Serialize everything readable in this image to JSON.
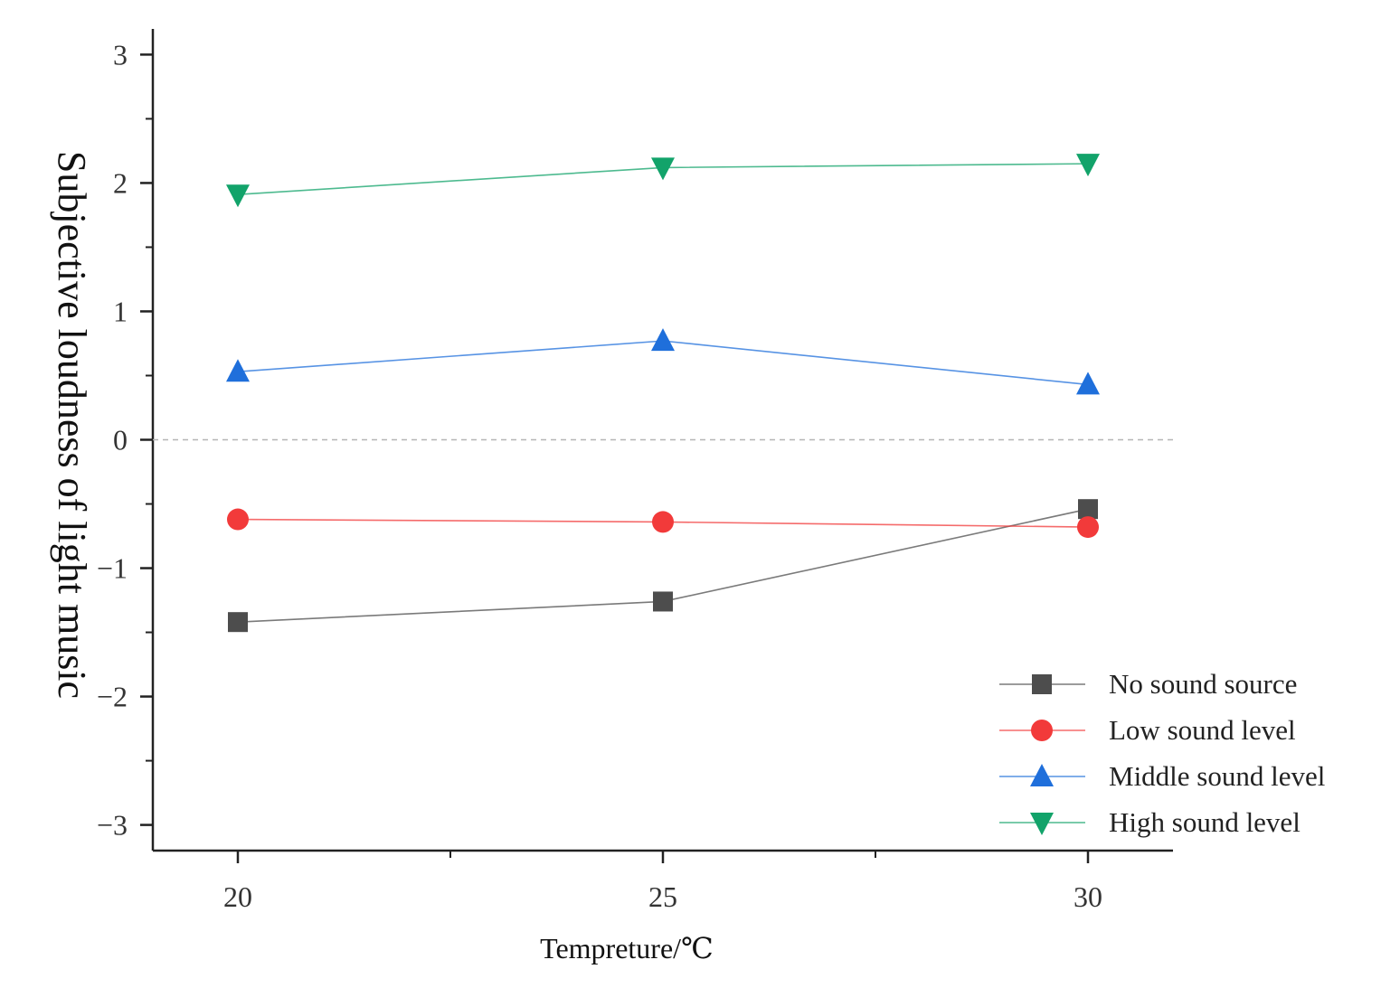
{
  "chart_data": {
    "type": "line",
    "title": "",
    "xlabel": "Tempreture/℃",
    "ylabel": "Subjective loudness of light music",
    "x": [
      20,
      25,
      30
    ],
    "xlim": [
      19,
      31
    ],
    "ylim": [
      -3.2,
      3.2
    ],
    "x_ticks": [
      20,
      25,
      30
    ],
    "y_ticks": [
      -3,
      -2,
      -1,
      0,
      1,
      2,
      3
    ],
    "y_tick_labels": [
      "−3",
      "−2",
      "−1",
      "0",
      "1",
      "2",
      "3"
    ],
    "reference_line": {
      "y": 0,
      "style": "dashed"
    },
    "grid": false,
    "legend_position": "bottom-right",
    "series": [
      {
        "name": "No sound source",
        "values": [
          -1.42,
          -1.26,
          -0.54
        ],
        "color": "#4d4d4d",
        "marker": "square"
      },
      {
        "name": "Low sound level",
        "values": [
          -0.62,
          -0.64,
          -0.68
        ],
        "color": "#f23a3a",
        "marker": "circle"
      },
      {
        "name": "Middle sound level",
        "values": [
          0.53,
          0.77,
          0.43
        ],
        "color": "#1f6fdb",
        "marker": "triangle-up"
      },
      {
        "name": "High sound level",
        "values": [
          1.91,
          2.12,
          2.15
        ],
        "color": "#12a36a",
        "marker": "triangle-down"
      }
    ]
  }
}
